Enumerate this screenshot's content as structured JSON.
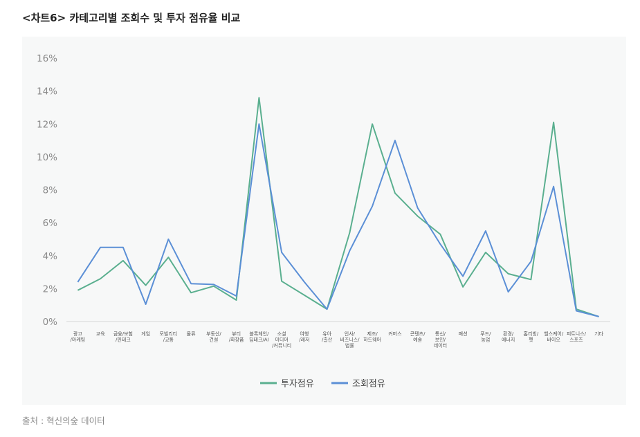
{
  "title": "<차트6>  카테고리별 조회수 및 투자 점유율 비교",
  "source": "출처 : 혁신의숲 데이터",
  "chart_data": {
    "type": "line",
    "title": "<차트6>  카테고리별 조회수 및 투자 점유율 비교",
    "xlabel": "",
    "ylabel": "",
    "ylim": [
      0,
      16
    ],
    "yticks": [
      0,
      2,
      4,
      6,
      8,
      10,
      12,
      14,
      16
    ],
    "ytick_labels": [
      "0%",
      "2%",
      "4%",
      "6%",
      "8%",
      "10%",
      "12%",
      "14%",
      "16%"
    ],
    "grid": false,
    "legend_position": "bottom",
    "categories": [
      [
        "광고",
        "/마케팅"
      ],
      [
        "교육"
      ],
      [
        "금융/보험",
        "/핀테크"
      ],
      [
        "게임"
      ],
      [
        "모빌리티",
        "/교통"
      ],
      [
        "물류"
      ],
      [
        "부동산/",
        "건설"
      ],
      [
        "뷰티",
        "/화장품"
      ],
      [
        "블록체인/",
        "딥테크/AI"
      ],
      [
        "소셜",
        "미디어",
        "/커뮤니티"
      ],
      [
        "여행",
        "/레저"
      ],
      [
        "유아",
        "/출산"
      ],
      [
        "인사/",
        "비즈니스/",
        "법률"
      ],
      [
        "제조/",
        "하드웨어"
      ],
      [
        "커머스"
      ],
      [
        "콘텐츠/",
        "예술"
      ],
      [
        "통신/",
        "보안/",
        "데이터"
      ],
      [
        "패션"
      ],
      [
        "푸드/",
        "농업"
      ],
      [
        "환경/",
        "에너지"
      ],
      [
        "홈리빙/",
        "펫"
      ],
      [
        "헬스케어/",
        "바이오"
      ],
      [
        "피트니스/",
        "스포츠"
      ],
      [
        "기타"
      ]
    ],
    "series": [
      {
        "name": "투자점유",
        "color": "#5aaf8f",
        "values": [
          1.9,
          2.6,
          3.7,
          2.2,
          3.9,
          1.75,
          2.15,
          1.3,
          13.6,
          2.45,
          1.6,
          0.75,
          5.4,
          12.0,
          7.8,
          6.4,
          5.3,
          2.1,
          4.2,
          2.9,
          2.55,
          12.1,
          0.75,
          0.3
        ]
      },
      {
        "name": "조회점유",
        "color": "#5b8fd6",
        "values": [
          2.4,
          4.5,
          4.5,
          1.05,
          5.0,
          2.3,
          2.25,
          1.55,
          12.0,
          4.2,
          2.4,
          0.75,
          4.3,
          7.0,
          11.0,
          6.9,
          4.7,
          2.75,
          5.5,
          1.8,
          3.65,
          8.2,
          0.65,
          0.3
        ]
      }
    ]
  }
}
